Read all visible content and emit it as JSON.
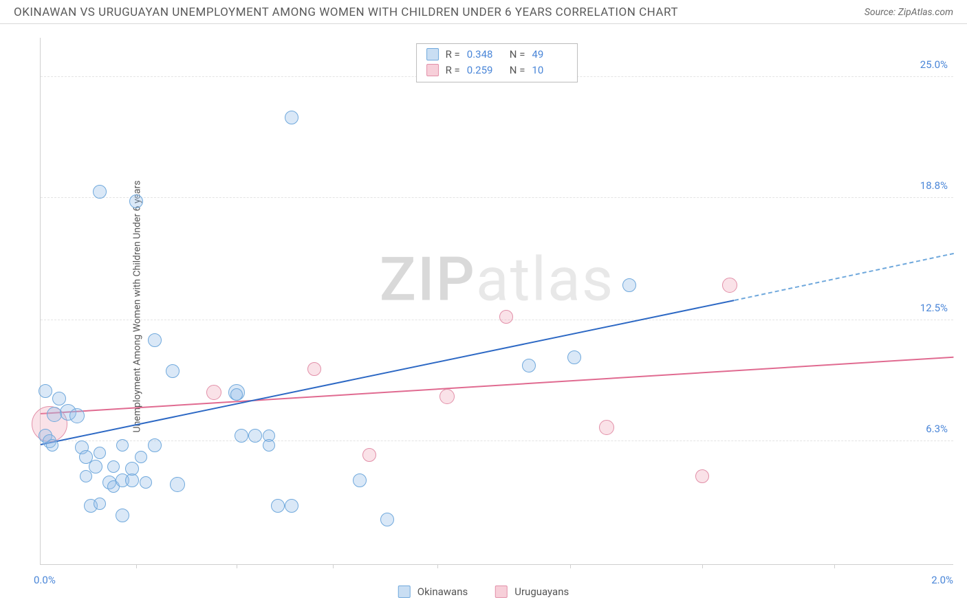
{
  "header": {
    "title": "OKINAWAN VS URUGUAYAN UNEMPLOYMENT AMONG WOMEN WITH CHILDREN UNDER 6 YEARS CORRELATION CHART",
    "source": "Source: ZipAtlas.com"
  },
  "watermark": {
    "zip": "ZIP",
    "rest": "atlas"
  },
  "chart": {
    "type": "scatter",
    "yaxis_title": "Unemployment Among Women with Children Under 6 years",
    "background_color": "#ffffff",
    "grid_color": "#e3e3e3",
    "axis_color": "#cfcfcf",
    "label_color": "#4a86d8",
    "xlim": [
      0.0,
      2.0
    ],
    "ylim": [
      0.0,
      27.0
    ],
    "x_min_label": "0.0%",
    "x_max_label": "2.0%",
    "xtick_positions": [
      0.21,
      0.43,
      0.64,
      0.87,
      1.16,
      1.45,
      1.74
    ],
    "ytick_positions": [
      6.3,
      12.5,
      18.8,
      25.0
    ],
    "ytick_labels": [
      "6.3%",
      "12.5%",
      "18.8%",
      "25.0%"
    ],
    "series_blue": {
      "name": "Okinawans",
      "fill": "rgba(148,190,232,0.35)",
      "stroke": "#6fa8dc",
      "reg_color": "#2c68c4",
      "reg": {
        "x1": 0.0,
        "y1": 6.1,
        "x2": 1.52,
        "y2": 13.5
      },
      "reg_dash": {
        "x1": 1.52,
        "y1": 13.5,
        "x2": 2.0,
        "y2": 15.9
      },
      "points": [
        {
          "x": 0.01,
          "y": 6.6,
          "r": 10
        },
        {
          "x": 0.02,
          "y": 6.3,
          "r": 10
        },
        {
          "x": 0.025,
          "y": 6.1,
          "r": 9
        },
        {
          "x": 0.03,
          "y": 7.7,
          "r": 11
        },
        {
          "x": 0.04,
          "y": 8.5,
          "r": 10
        },
        {
          "x": 0.01,
          "y": 8.9,
          "r": 10
        },
        {
          "x": 0.06,
          "y": 7.8,
          "r": 12
        },
        {
          "x": 0.08,
          "y": 7.6,
          "r": 11
        },
        {
          "x": 0.09,
          "y": 6.0,
          "r": 10
        },
        {
          "x": 0.1,
          "y": 5.5,
          "r": 10
        },
        {
          "x": 0.1,
          "y": 4.5,
          "r": 9
        },
        {
          "x": 0.11,
          "y": 3.0,
          "r": 10
        },
        {
          "x": 0.12,
          "y": 5.0,
          "r": 10
        },
        {
          "x": 0.13,
          "y": 5.7,
          "r": 9
        },
        {
          "x": 0.13,
          "y": 3.1,
          "r": 9
        },
        {
          "x": 0.13,
          "y": 19.1,
          "r": 10
        },
        {
          "x": 0.15,
          "y": 4.2,
          "r": 10
        },
        {
          "x": 0.16,
          "y": 4.0,
          "r": 9
        },
        {
          "x": 0.16,
          "y": 5.0,
          "r": 9
        },
        {
          "x": 0.18,
          "y": 6.1,
          "r": 9
        },
        {
          "x": 0.18,
          "y": 4.3,
          "r": 10
        },
        {
          "x": 0.18,
          "y": 2.5,
          "r": 10
        },
        {
          "x": 0.2,
          "y": 4.3,
          "r": 10
        },
        {
          "x": 0.2,
          "y": 4.9,
          "r": 10
        },
        {
          "x": 0.21,
          "y": 18.6,
          "r": 10
        },
        {
          "x": 0.22,
          "y": 5.5,
          "r": 9
        },
        {
          "x": 0.23,
          "y": 4.2,
          "r": 9
        },
        {
          "x": 0.25,
          "y": 6.1,
          "r": 10
        },
        {
          "x": 0.25,
          "y": 11.5,
          "r": 10
        },
        {
          "x": 0.29,
          "y": 9.9,
          "r": 10
        },
        {
          "x": 0.3,
          "y": 4.1,
          "r": 11
        },
        {
          "x": 0.43,
          "y": 8.8,
          "r": 12
        },
        {
          "x": 0.43,
          "y": 8.7,
          "r": 9
        },
        {
          "x": 0.44,
          "y": 6.6,
          "r": 10
        },
        {
          "x": 0.47,
          "y": 6.6,
          "r": 10
        },
        {
          "x": 0.5,
          "y": 6.6,
          "r": 9
        },
        {
          "x": 0.5,
          "y": 6.1,
          "r": 9
        },
        {
          "x": 0.52,
          "y": 3.0,
          "r": 10
        },
        {
          "x": 0.55,
          "y": 3.0,
          "r": 10
        },
        {
          "x": 0.55,
          "y": 22.9,
          "r": 10
        },
        {
          "x": 0.7,
          "y": 4.3,
          "r": 10
        },
        {
          "x": 0.76,
          "y": 2.3,
          "r": 10
        },
        {
          "x": 1.07,
          "y": 10.2,
          "r": 10
        },
        {
          "x": 1.17,
          "y": 10.6,
          "r": 10
        },
        {
          "x": 1.29,
          "y": 14.3,
          "r": 10
        }
      ]
    },
    "series_pink": {
      "name": "Uruguayans",
      "fill": "rgba(240,160,180,0.30)",
      "stroke": "#e28fa8",
      "reg_color": "#e06a90",
      "reg": {
        "x1": 0.0,
        "y1": 7.7,
        "x2": 2.0,
        "y2": 10.6
      },
      "points": [
        {
          "x": 0.02,
          "y": 7.2,
          "r": 26
        },
        {
          "x": 0.38,
          "y": 8.8,
          "r": 11
        },
        {
          "x": 0.6,
          "y": 10.0,
          "r": 10
        },
        {
          "x": 0.72,
          "y": 5.6,
          "r": 10
        },
        {
          "x": 0.89,
          "y": 8.6,
          "r": 11
        },
        {
          "x": 1.02,
          "y": 12.7,
          "r": 10
        },
        {
          "x": 1.24,
          "y": 7.0,
          "r": 11
        },
        {
          "x": 1.45,
          "y": 4.5,
          "r": 10
        },
        {
          "x": 1.51,
          "y": 14.3,
          "r": 11
        }
      ]
    }
  },
  "stats_box": {
    "rows": [
      {
        "swatch": "blue",
        "r_label": "R =",
        "r_value": "0.348",
        "n_label": "N =",
        "n_value": "49"
      },
      {
        "swatch": "pink",
        "r_label": "R =",
        "r_value": "0.259",
        "n_label": "N =",
        "n_value": "10"
      }
    ]
  },
  "bottom_legend": {
    "items": [
      {
        "swatch": "blue",
        "label": "Okinawans"
      },
      {
        "swatch": "pink",
        "label": "Uruguayans"
      }
    ]
  }
}
